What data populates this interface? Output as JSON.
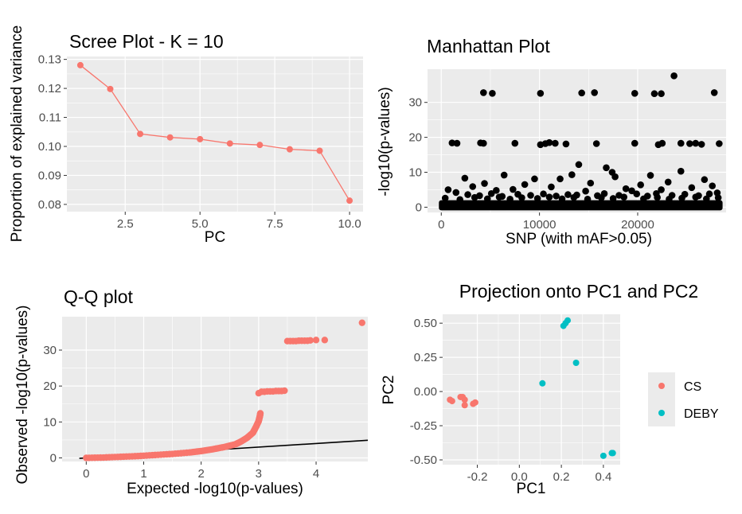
{
  "chart_data": [
    {
      "type": "line",
      "title": "Scree Plot - K = 10",
      "xlabel": "PC",
      "ylabel": "Proportion of explained variance",
      "xlim": [
        0.55,
        10.45
      ],
      "ylim": [
        0.0775,
        0.131
      ],
      "x_ticks": [
        2.5,
        5.0,
        7.5,
        10.0
      ],
      "x_tick_labels": [
        "2.5",
        "5.0",
        "7.5",
        "10.0"
      ],
      "y_ticks": [
        0.08,
        0.09,
        0.1,
        0.11,
        0.12,
        0.13
      ],
      "y_tick_labels": [
        "0.08",
        "0.09",
        "0.10",
        "0.11",
        "0.12",
        "0.13"
      ],
      "grid": true,
      "color": "#F8766D",
      "x": [
        1,
        2,
        3,
        4,
        5,
        6,
        7,
        8,
        9,
        10
      ],
      "y": [
        0.128,
        0.1198,
        0.1043,
        0.1031,
        0.1025,
        0.101,
        0.1005,
        0.099,
        0.0985,
        0.0813
      ]
    },
    {
      "type": "scatter",
      "title": "Manhattan Plot",
      "xlabel": "SNP (with mAF>0.05)",
      "ylabel": "-log10(p-values)",
      "xlim": [
        -1400,
        29000
      ],
      "ylim": [
        -1.5,
        39.5
      ],
      "x_ticks": [
        0,
        10000,
        20000
      ],
      "x_tick_labels": [
        "0",
        "10000",
        "20000"
      ],
      "y_ticks": [
        0,
        10,
        20,
        30
      ],
      "y_tick_labels": [
        "0",
        "10",
        "20",
        "30"
      ],
      "grid": true,
      "color": "#000000",
      "band_x_range": [
        0,
        28400
      ],
      "points": [
        [
          23700,
          37.6
        ],
        [
          4300,
          32.8
        ],
        [
          5200,
          32.6
        ],
        [
          10100,
          32.6
        ],
        [
          14300,
          32.7
        ],
        [
          15600,
          32.8
        ],
        [
          19700,
          32.6
        ],
        [
          21700,
          32.5
        ],
        [
          22400,
          32.5
        ],
        [
          27800,
          32.8
        ],
        [
          1100,
          18.4
        ],
        [
          1600,
          18.3
        ],
        [
          4000,
          18.4
        ],
        [
          4300,
          18.3
        ],
        [
          7500,
          18.3
        ],
        [
          10100,
          17.9
        ],
        [
          10600,
          18.2
        ],
        [
          11000,
          18.5
        ],
        [
          11600,
          18.3
        ],
        [
          12700,
          18.1
        ],
        [
          15800,
          18.2
        ],
        [
          19700,
          18.3
        ],
        [
          22100,
          17.9
        ],
        [
          22500,
          18.3
        ],
        [
          24400,
          18.3
        ],
        [
          25300,
          18.2
        ],
        [
          25900,
          18.3
        ],
        [
          26500,
          18.0
        ],
        [
          28300,
          18.2
        ],
        [
          14000,
          12.2
        ],
        [
          16800,
          11.3
        ],
        [
          24400,
          10.3
        ],
        [
          17400,
          10.0
        ],
        [
          6400,
          9.2
        ],
        [
          13300,
          9.3
        ],
        [
          21300,
          9.1
        ],
        [
          2400,
          8.3
        ],
        [
          9500,
          8.1
        ],
        [
          12100,
          8.1
        ],
        [
          17700,
          8.7
        ],
        [
          26800,
          7.9
        ],
        [
          4400,
          6.8
        ],
        [
          8500,
          6.5
        ],
        [
          15200,
          6.9
        ],
        [
          20300,
          6.4
        ],
        [
          23100,
          7.2
        ],
        [
          27600,
          6.1
        ],
        [
          3200,
          5.9
        ],
        [
          11200,
          5.8
        ],
        [
          18800,
          5.3
        ],
        [
          25500,
          5.6
        ],
        [
          700,
          5.0
        ],
        [
          5600,
          4.8
        ],
        [
          7300,
          5.1
        ],
        [
          14700,
          4.6
        ],
        [
          19400,
          4.7
        ],
        [
          22400,
          5.0
        ],
        [
          28100,
          4.1
        ],
        [
          1500,
          4.2
        ],
        [
          2700,
          3.6
        ],
        [
          3900,
          3.3
        ],
        [
          5100,
          3.9
        ],
        [
          6200,
          3.1
        ],
        [
          7800,
          3.7
        ],
        [
          9100,
          3.4
        ],
        [
          10400,
          3.8
        ],
        [
          11700,
          3.2
        ],
        [
          12900,
          3.6
        ],
        [
          13800,
          3.5
        ],
        [
          15900,
          3.3
        ],
        [
          16600,
          3.9
        ],
        [
          18100,
          3.4
        ],
        [
          19900,
          3.8
        ],
        [
          21000,
          3.2
        ],
        [
          21900,
          3.9
        ],
        [
          23500,
          3.4
        ],
        [
          24800,
          3.7
        ],
        [
          26200,
          3.3
        ],
        [
          27300,
          3.8
        ],
        [
          400,
          2.6
        ],
        [
          1900,
          2.2
        ],
        [
          3400,
          2.8
        ],
        [
          4700,
          2.4
        ],
        [
          5900,
          2.9
        ],
        [
          7000,
          2.3
        ],
        [
          8200,
          2.7
        ],
        [
          9800,
          2.5
        ],
        [
          11000,
          2.9
        ],
        [
          12300,
          2.4
        ],
        [
          13500,
          2.8
        ],
        [
          14900,
          2.3
        ],
        [
          16300,
          2.7
        ],
        [
          17500,
          2.5
        ],
        [
          18600,
          2.9
        ],
        [
          20600,
          2.4
        ],
        [
          22000,
          2.8
        ],
        [
          23200,
          2.3
        ],
        [
          24500,
          2.6
        ],
        [
          25900,
          2.9
        ],
        [
          27000,
          2.4
        ],
        [
          28200,
          2.7
        ]
      ]
    },
    {
      "type": "scatter",
      "title": "Q-Q plot",
      "xlabel": "Expected -log10(p-values)",
      "ylabel": "Observed -log10(p-values)",
      "xlim": [
        -0.42,
        4.9
      ],
      "ylim": [
        -1.0,
        39.3
      ],
      "x_ticks": [
        0,
        1,
        2,
        3,
        4
      ],
      "x_tick_labels": [
        "0",
        "1",
        "2",
        "3",
        "4"
      ],
      "y_ticks": [
        0,
        10,
        20,
        30
      ],
      "y_tick_labels": [
        "0",
        "10",
        "20",
        "30"
      ],
      "grid": true,
      "color": "#F8766D",
      "reference_line": {
        "intercept": 0,
        "slope": 1,
        "color": "#000000"
      },
      "points": [
        [
          0.0,
          0.0
        ],
        [
          0.3,
          0.1
        ],
        [
          0.6,
          0.3
        ],
        [
          0.9,
          0.5
        ],
        [
          1.2,
          0.8
        ],
        [
          1.5,
          1.1
        ],
        [
          1.8,
          1.5
        ],
        [
          2.0,
          1.9
        ],
        [
          2.2,
          2.4
        ],
        [
          2.4,
          3.0
        ],
        [
          2.6,
          3.8
        ],
        [
          2.7,
          4.6
        ],
        [
          2.8,
          5.6
        ],
        [
          2.9,
          7.0
        ],
        [
          2.95,
          8.5
        ],
        [
          3.0,
          10.2
        ],
        [
          3.02,
          11.5
        ],
        [
          3.03,
          12.4
        ],
        [
          3.0,
          18.0
        ],
        [
          3.05,
          18.4
        ],
        [
          3.1,
          18.4
        ],
        [
          3.15,
          18.5
        ],
        [
          3.2,
          18.5
        ],
        [
          3.25,
          18.5
        ],
        [
          3.3,
          18.6
        ],
        [
          3.35,
          18.6
        ],
        [
          3.4,
          18.6
        ],
        [
          3.45,
          18.7
        ],
        [
          3.5,
          32.5
        ],
        [
          3.55,
          32.5
        ],
        [
          3.6,
          32.5
        ],
        [
          3.65,
          32.5
        ],
        [
          3.7,
          32.6
        ],
        [
          3.75,
          32.6
        ],
        [
          3.8,
          32.6
        ],
        [
          3.85,
          32.6
        ],
        [
          3.9,
          32.7
        ],
        [
          4.0,
          32.8
        ],
        [
          4.15,
          32.8
        ],
        [
          4.8,
          37.6
        ]
      ]
    },
    {
      "type": "scatter",
      "title": "Projection onto PC1 and PC2",
      "xlabel": "PC1",
      "ylabel": "PC2",
      "xlim": [
        -0.365,
        0.48
      ],
      "ylim": [
        -0.535,
        0.565
      ],
      "x_ticks": [
        -0.2,
        0.0,
        0.2,
        0.4
      ],
      "x_tick_labels": [
        "-0.2",
        "0.0",
        "0.2",
        "0.4"
      ],
      "y_ticks": [
        -0.5,
        -0.25,
        0.0,
        0.25,
        0.5
      ],
      "y_tick_labels": [
        "-0.50",
        "-0.25",
        "0.00",
        "0.25",
        "0.50"
      ],
      "grid": true,
      "series": [
        {
          "name": "CS",
          "color": "#F8766D",
          "points": [
            [
              -0.33,
              -0.06
            ],
            [
              -0.32,
              -0.07
            ],
            [
              -0.28,
              -0.04
            ],
            [
              -0.27,
              -0.04
            ],
            [
              -0.26,
              -0.1
            ],
            [
              -0.26,
              -0.06
            ],
            [
              -0.22,
              -0.09
            ],
            [
              -0.21,
              -0.08
            ]
          ]
        },
        {
          "name": "DEBY",
          "color": "#00BFC4",
          "points": [
            [
              0.11,
              0.06
            ],
            [
              0.21,
              0.48
            ],
            [
              0.22,
              0.5
            ],
            [
              0.23,
              0.52
            ],
            [
              0.27,
              0.21
            ],
            [
              0.4,
              -0.47
            ],
            [
              0.44,
              -0.45
            ],
            [
              0.445,
              -0.45
            ]
          ]
        }
      ],
      "legend_position": "right"
    }
  ]
}
